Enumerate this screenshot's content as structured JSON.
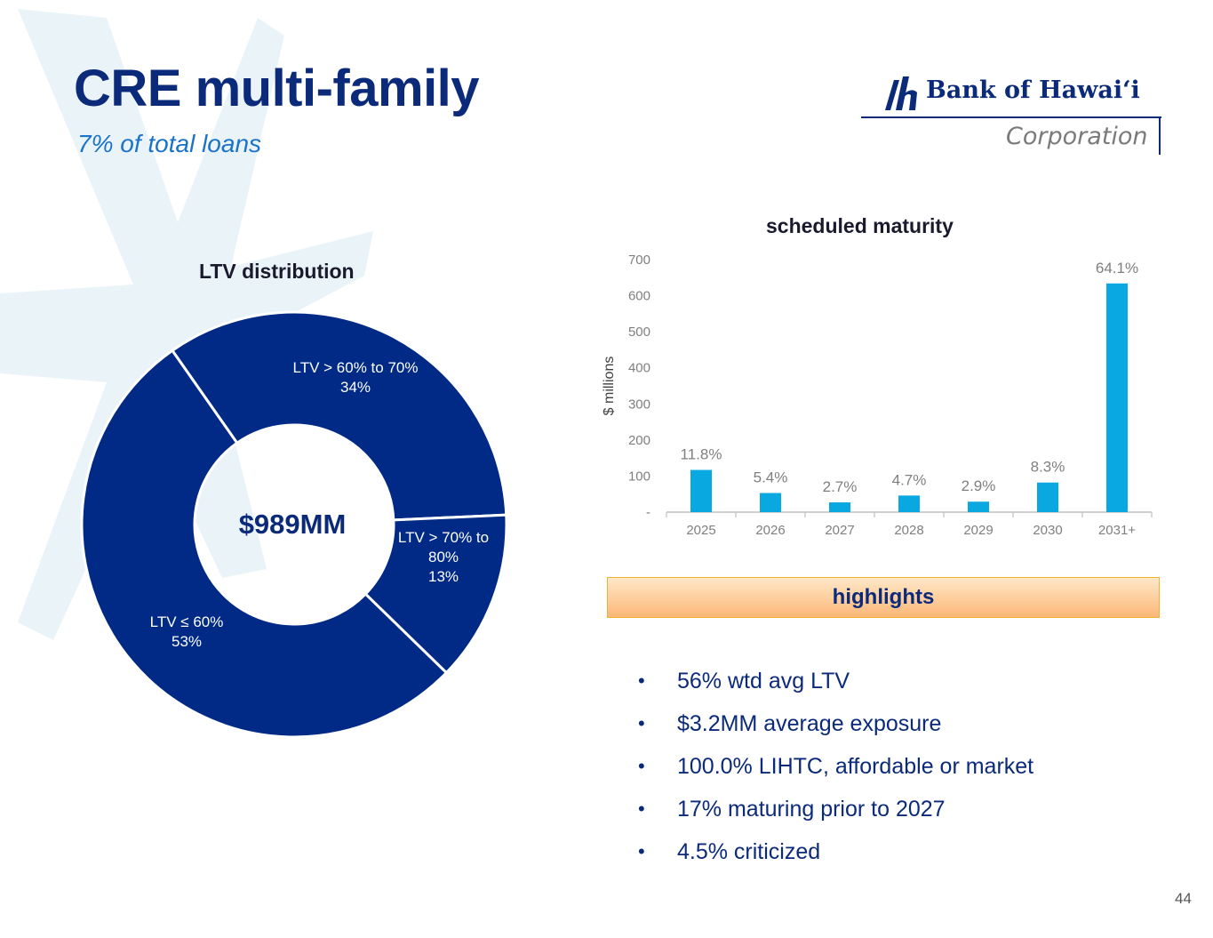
{
  "slide": {
    "title": "CRE multi-family",
    "subtitle": "7% of total loans",
    "page_number": "44"
  },
  "logo": {
    "name": "Bank of Hawaiʻi",
    "suffix": "Corporation"
  },
  "colors": {
    "navy": "#002a86",
    "bar": "#0aa8e0",
    "title": "#0b2a7a",
    "accent_blue": "#1a73c8"
  },
  "chart_data": [
    {
      "type": "pie",
      "title": "LTV distribution",
      "center_label": "$989MM",
      "slices": [
        {
          "label": "LTV > 60% to 70%",
          "value_label": "34%",
          "value": 34
        },
        {
          "label": "LTV > 70% to 80%",
          "label_lines": [
            "LTV > 70% to",
            "80%"
          ],
          "value_label": "13%",
          "value": 13
        },
        {
          "label": "LTV ≤ 60%",
          "value_label": "53%",
          "value": 53
        }
      ]
    },
    {
      "type": "bar",
      "title": "scheduled maturity",
      "ylabel": "$ millions",
      "xlabel": "",
      "ylim": [
        0,
        700
      ],
      "yticks": [
        "-",
        "100",
        "200",
        "300",
        "400",
        "500",
        "600",
        "700"
      ],
      "categories": [
        "2025",
        "2026",
        "2027",
        "2028",
        "2029",
        "2030",
        "2031+"
      ],
      "values": [
        117,
        53,
        27,
        46,
        29,
        82,
        634
      ],
      "data_labels": [
        "11.8%",
        "5.4%",
        "2.7%",
        "4.7%",
        "2.9%",
        "8.3%",
        "64.1%"
      ]
    }
  ],
  "highlights": {
    "label": "highlights",
    "items": [
      "56% wtd avg LTV",
      "$3.2MM average exposure",
      "100.0% LIHTC, affordable or market",
      "17% maturing prior to 2027",
      "4.5% criticized"
    ]
  }
}
